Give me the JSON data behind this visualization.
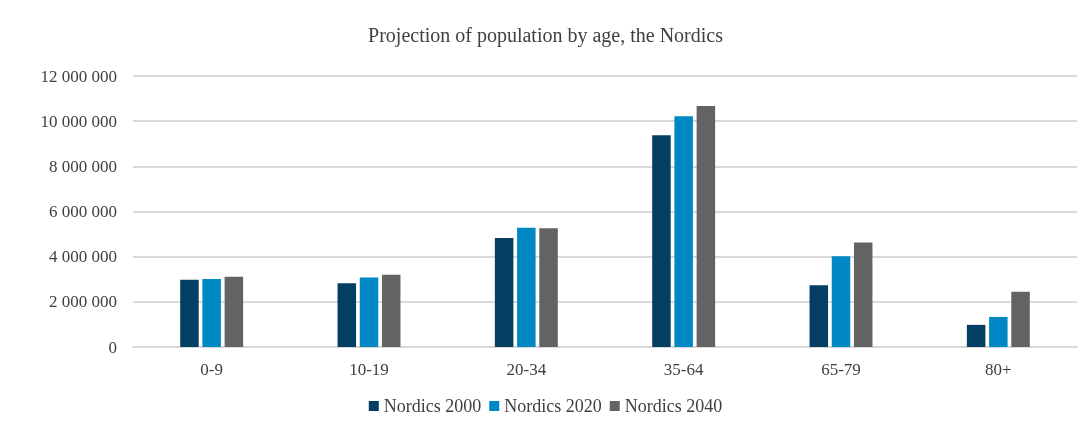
{
  "chart_data": {
    "type": "bar",
    "title": "Projection of population by age, the Nordics",
    "categories": [
      "0-9",
      "10-19",
      "20-34",
      "35-64",
      "65-79",
      "80+"
    ],
    "series": [
      {
        "name": "Nordics 2000",
        "color": "#023f63",
        "values": [
          2980000,
          2820000,
          4830000,
          9380000,
          2730000,
          980000
        ]
      },
      {
        "name": "Nordics 2020",
        "color": "#0088c4",
        "values": [
          3010000,
          3080000,
          5280000,
          10220000,
          4020000,
          1330000
        ]
      },
      {
        "name": "Nordics 2040",
        "color": "#626365",
        "values": [
          3110000,
          3200000,
          5260000,
          10670000,
          4630000,
          2450000
        ]
      }
    ],
    "ylim": [
      0,
      12000000
    ],
    "yticks": [
      {
        "value": 0,
        "label": "0"
      },
      {
        "value": 2000000,
        "label": "2 000 000"
      },
      {
        "value": 4000000,
        "label": "4 000 000"
      },
      {
        "value": 6000000,
        "label": "6 000 000"
      },
      {
        "value": 8000000,
        "label": "8 000 000"
      },
      {
        "value": 10000000,
        "label": "10 000 000"
      },
      {
        "value": 12000000,
        "label": "12 000 000"
      }
    ],
    "grid": "y",
    "legend": "bottom"
  }
}
